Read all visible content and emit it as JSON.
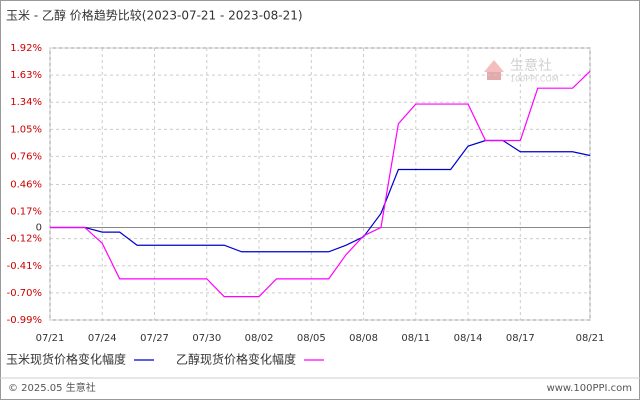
{
  "chart_data": {
    "type": "line",
    "title": "玉米 - 乙醇 价格趋势比较(2023-07-21 - 2023-08-21)",
    "x": [
      "07/21",
      null,
      null,
      "07/24",
      null,
      null,
      "07/27",
      null,
      null,
      "07/30",
      null,
      null,
      "08/02",
      null,
      null,
      "08/05",
      null,
      null,
      "08/08",
      null,
      null,
      "08/11",
      null,
      null,
      "08/14",
      null,
      null,
      "08/17",
      null,
      null,
      null,
      "08/21"
    ],
    "series": [
      {
        "name": "玉米现货价格变化幅度",
        "color": "#0000cc",
        "values": [
          0,
          0,
          0,
          -0.05,
          -0.05,
          -0.19,
          -0.19,
          -0.19,
          -0.19,
          -0.19,
          -0.19,
          -0.26,
          -0.26,
          -0.26,
          -0.26,
          -0.26,
          -0.26,
          -0.19,
          -0.1,
          0.15,
          0.62,
          0.62,
          0.62,
          0.62,
          0.87,
          0.93,
          0.93,
          0.81,
          0.81,
          0.81,
          0.81,
          0.77
        ]
      },
      {
        "name": "乙醇现货价格变化幅度",
        "color": "#ff00ff",
        "values": [
          0,
          0,
          0,
          -0.17,
          -0.55,
          -0.55,
          -0.55,
          -0.55,
          -0.55,
          -0.55,
          -0.74,
          -0.74,
          -0.74,
          -0.55,
          -0.55,
          -0.55,
          -0.55,
          -0.29,
          -0.09,
          0,
          1.11,
          1.32,
          1.32,
          1.32,
          1.32,
          0.93,
          0.93,
          0.93,
          1.49,
          1.49,
          1.49,
          1.67
        ]
      }
    ],
    "ylim": [
      -0.99,
      1.92
    ],
    "yticks": [
      {
        "value": 1.92,
        "label": "1.92%"
      },
      {
        "value": 1.63,
        "label": "1.63%"
      },
      {
        "value": 1.34,
        "label": "1.34%"
      },
      {
        "value": 1.05,
        "label": "1.05%"
      },
      {
        "value": 0.76,
        "label": "0.76%"
      },
      {
        "value": 0.46,
        "label": "0.46%"
      },
      {
        "value": 0.17,
        "label": "0.17%"
      },
      0,
      {
        "value": -0.12,
        "label": "-0.12%"
      },
      {
        "value": -0.41,
        "label": "-0.41%"
      },
      {
        "value": -0.7,
        "label": "-0.70%"
      },
      {
        "value": -0.99,
        "label": "-0.99%"
      }
    ],
    "grid": true,
    "watermark": {
      "name": "生意社",
      "site": "100PPI.COM"
    },
    "footer": {
      "copyright": "© 2025.05 生意社",
      "url": "www.100PPI.com"
    }
  }
}
